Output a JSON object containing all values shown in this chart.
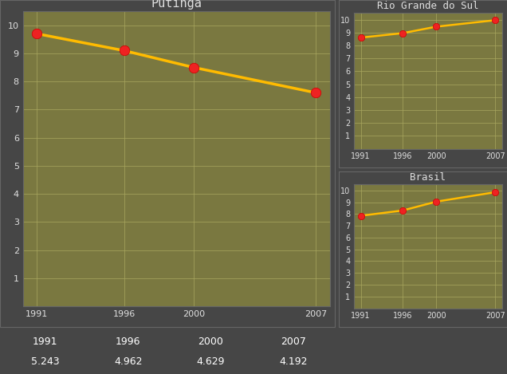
{
  "putinga": {
    "title": "Putinga",
    "x": [
      1991,
      1996,
      2000,
      2007
    ],
    "y": [
      9.7,
      9.1,
      8.5,
      7.6
    ],
    "ylim": [
      0,
      10
    ],
    "yticks": [
      1,
      2,
      3,
      4,
      5,
      6,
      7,
      8,
      9,
      10
    ],
    "xticks": [
      1991,
      1996,
      2000,
      2007
    ]
  },
  "rs": {
    "title": "Rio Grande do Sul",
    "x": [
      1991,
      1996,
      2000,
      2007
    ],
    "y": [
      8.6,
      8.95,
      9.45,
      9.95
    ],
    "ylim": [
      0,
      10
    ],
    "yticks": [
      1,
      2,
      3,
      4,
      5,
      6,
      7,
      8,
      9,
      10
    ],
    "xticks": [
      1991,
      1996,
      2000,
      2007
    ]
  },
  "brasil": {
    "title": "Brasil",
    "x": [
      1991,
      1996,
      2000,
      2007
    ],
    "y": [
      7.85,
      8.3,
      9.05,
      9.85
    ],
    "ylim": [
      0,
      10
    ],
    "yticks": [
      1,
      2,
      3,
      4,
      5,
      6,
      7,
      8,
      9,
      10
    ],
    "xticks": [
      1991,
      1996,
      2000,
      2007
    ]
  },
  "table": {
    "years": [
      "1991",
      "1996",
      "2000",
      "2007"
    ],
    "values": [
      "5.243",
      "4.962",
      "4.629",
      "4.192"
    ]
  },
  "bg_color": "#464646",
  "plot_bg_color": "#7a7840",
  "line_color": "#ffbb00",
  "marker_color": "#ee2222",
  "text_color": "#e0e0e0",
  "grid_color": "#aaa860",
  "table_bg": "#3a3a3a",
  "table_border": "#888888",
  "table_text_color": "#ffffff",
  "title_fontsize": 11,
  "small_title_fontsize": 9,
  "tick_fontsize_big": 8,
  "tick_fontsize_small": 7
}
